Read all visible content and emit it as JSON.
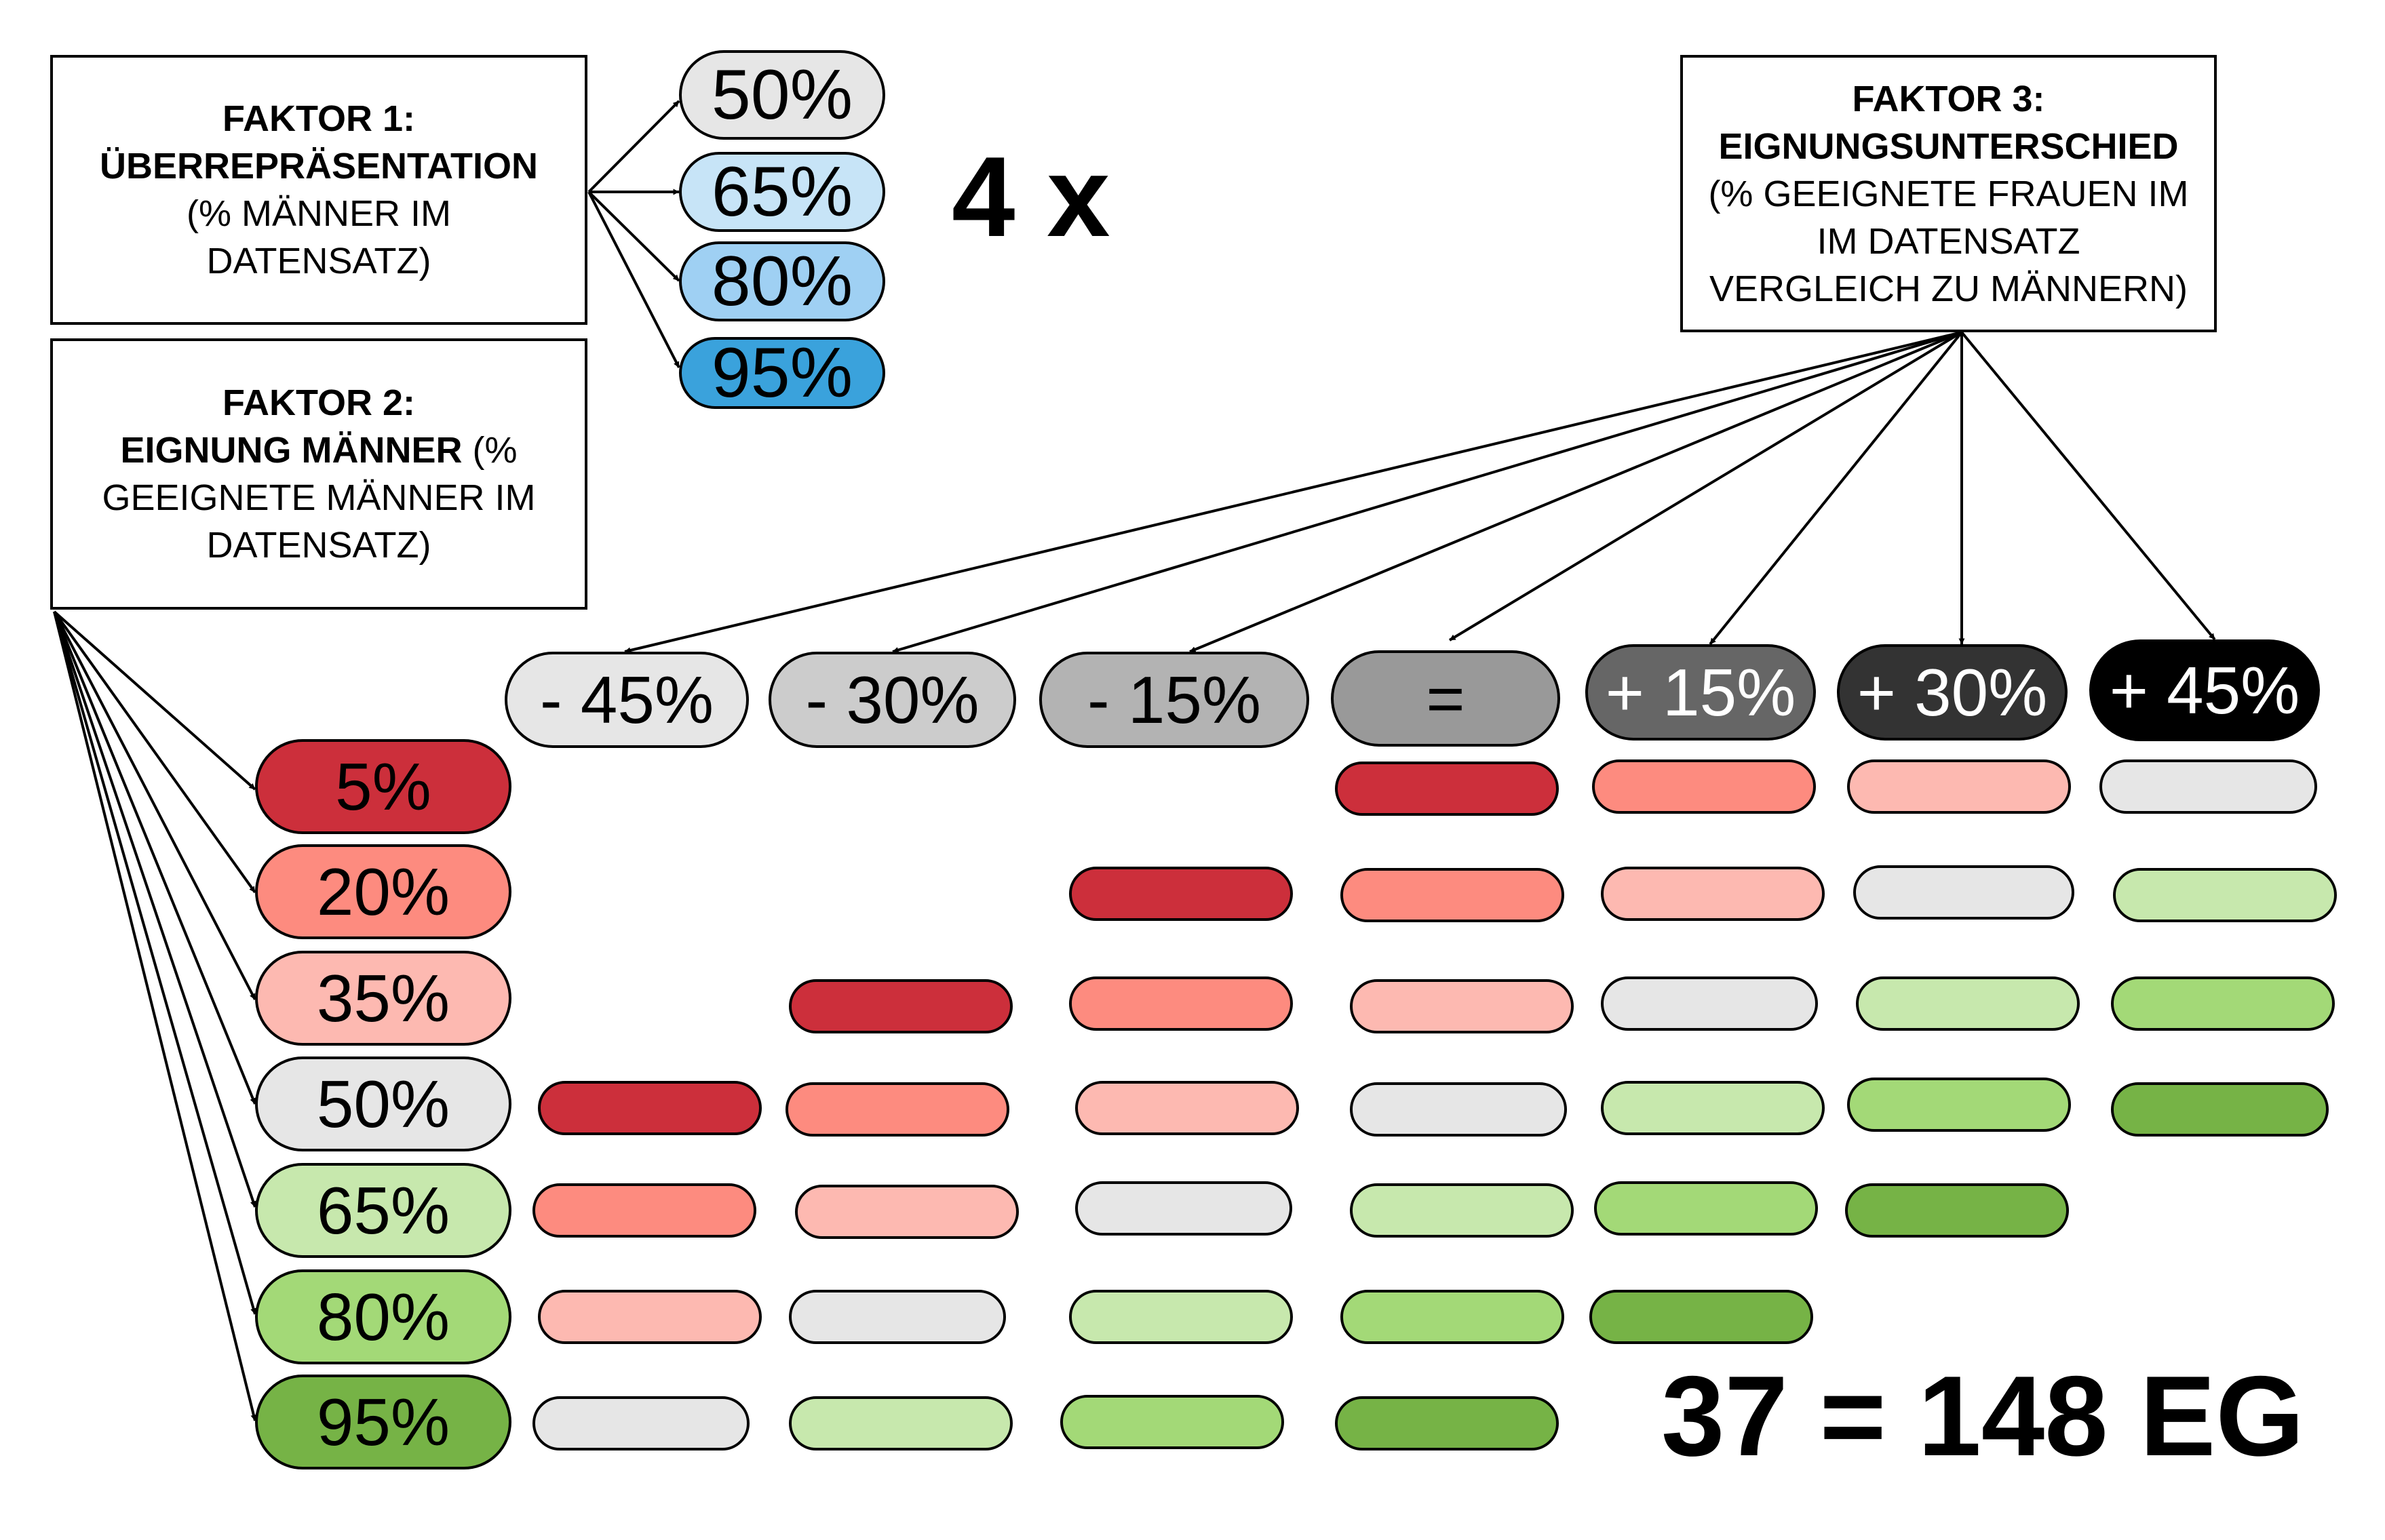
{
  "factor1": {
    "title": "FAKTOR 1:",
    "subtitle": "ÜBERREPRÄSENTATION",
    "desc1": "(% MÄNNER IM",
    "desc2": "DATENSATZ)",
    "levels": [
      {
        "label": "50%",
        "color": "#e6e6e6"
      },
      {
        "label": "65%",
        "color": "#c7e4f7"
      },
      {
        "label": "80%",
        "color": "#9fd0f3"
      },
      {
        "label": "95%",
        "color": "#3aa2dc"
      }
    ],
    "multiplier": "4 x"
  },
  "factor2": {
    "title": "FAKTOR 2:",
    "subtitle": "EIGNUNG MÄNNER",
    "subtitle_tail": " (%",
    "desc1": "GEEIGNETE MÄNNER IM",
    "desc2": "DATENSATZ)",
    "levels": [
      {
        "label": "5%",
        "color": "#cc2f3b"
      },
      {
        "label": "20%",
        "color": "#fd8b7f"
      },
      {
        "label": "35%",
        "color": "#fdb9b1"
      },
      {
        "label": "50%",
        "color": "#e6e6e6"
      },
      {
        "label": "65%",
        "color": "#c7e8ad"
      },
      {
        "label": "80%",
        "color": "#a3d977"
      },
      {
        "label": "95%",
        "color": "#76b346"
      }
    ]
  },
  "factor3": {
    "title": "FAKTOR 3:",
    "subtitle": "EIGNUNGSUNTERSCHIED",
    "desc1": "(% GEEIGNETE FRAUEN IM",
    "desc2": "IM DATENSATZ",
    "desc3": "VERGLEICH ZU MÄNNERN)",
    "levels": [
      {
        "label": "- 45%",
        "color": "#e6e6e6",
        "text": "#000000"
      },
      {
        "label": "- 30%",
        "color": "#cccccc",
        "text": "#000000"
      },
      {
        "label": "- 15%",
        "color": "#b3b3b3",
        "text": "#000000"
      },
      {
        "label": "=",
        "color": "#999999",
        "text": "#000000"
      },
      {
        "label": "+ 15%",
        "color": "#666666",
        "text": "#ffffff"
      },
      {
        "label": "+ 30%",
        "color": "#333333",
        "text": "#ffffff"
      },
      {
        "label": "+ 45%",
        "color": "#000000",
        "text": "#ffffff"
      }
    ]
  },
  "grid_color_scale": [
    "#cc2f3b",
    "#fd8b7f",
    "#fdb9b1",
    "#e6e6e6",
    "#c7e8ad",
    "#a3d977",
    "#76b346"
  ],
  "total": "37 = 148 EG"
}
